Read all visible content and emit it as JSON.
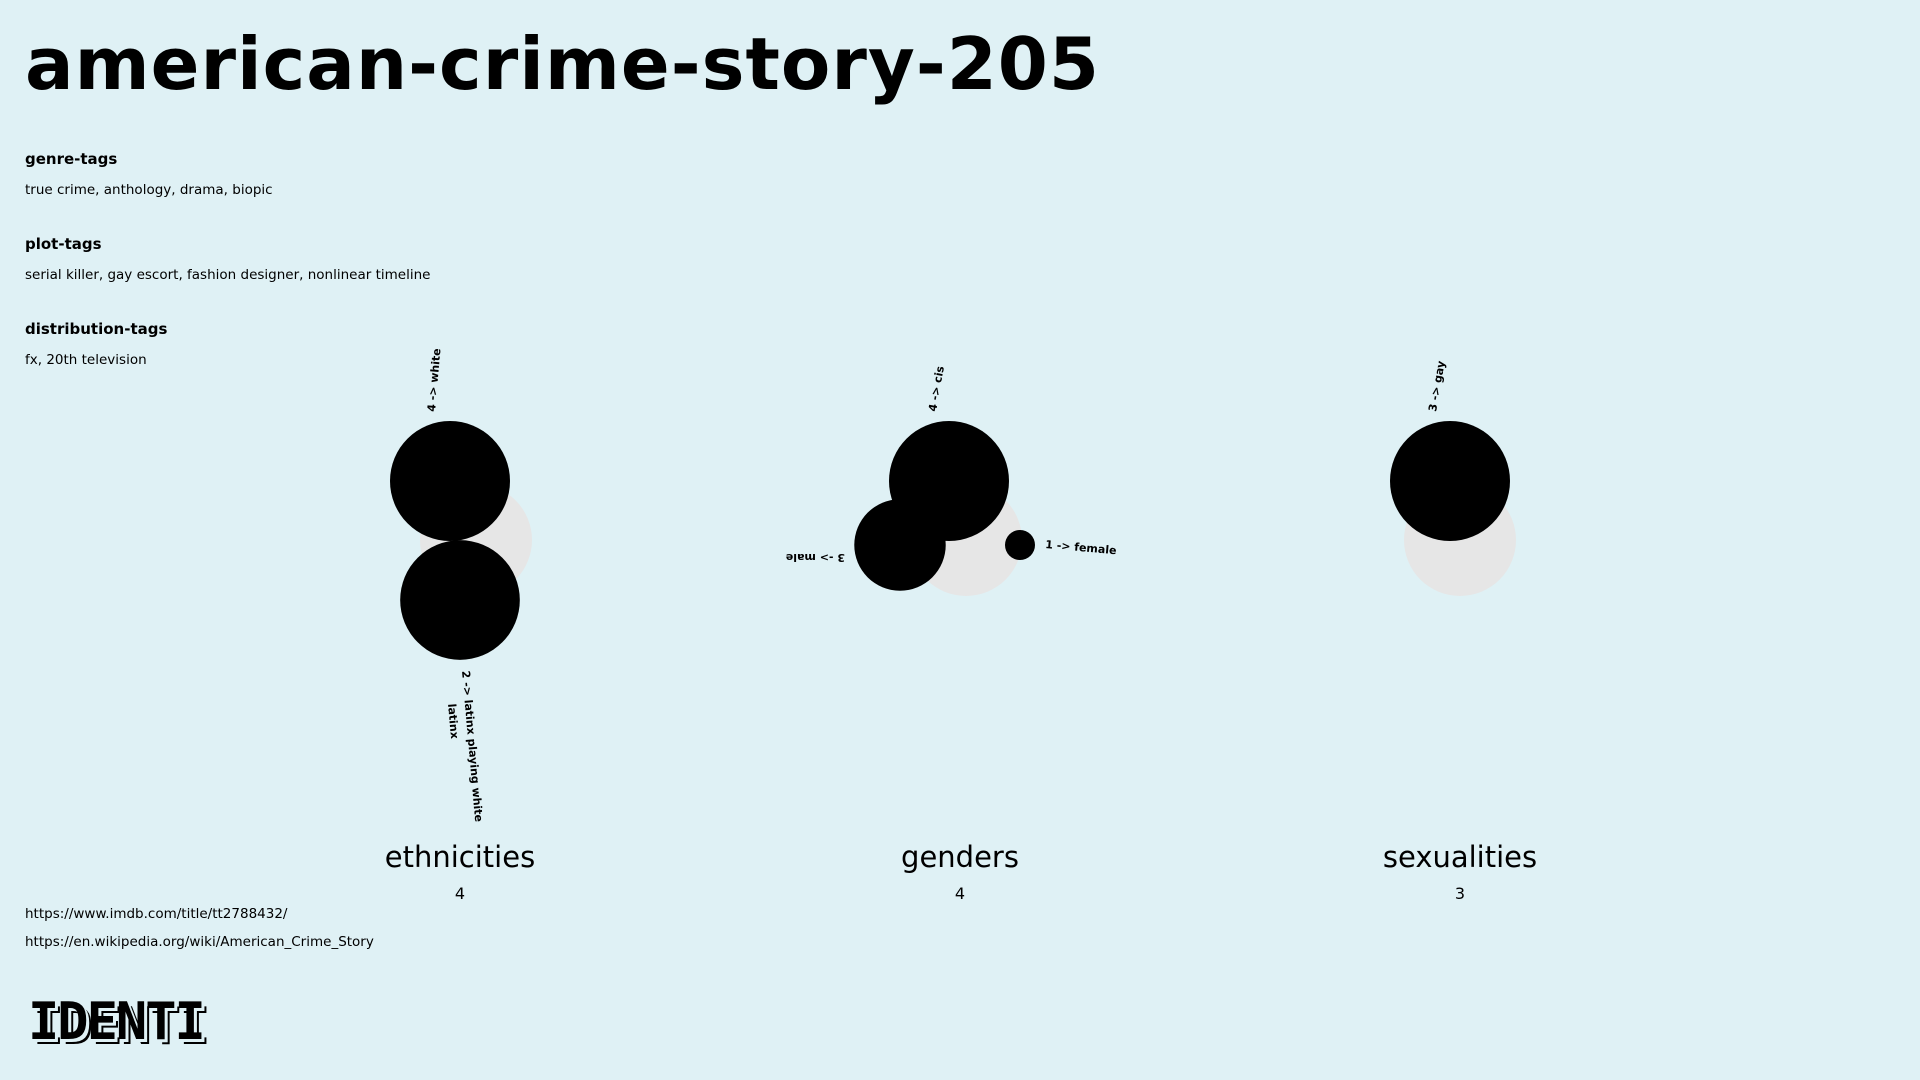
{
  "page": {
    "title": "american-crime-story-205",
    "background": "#dff1f5"
  },
  "tags": [
    {
      "heading": "genre-tags",
      "value": "true crime, anthology, drama, biopic"
    },
    {
      "heading": "plot-tags",
      "value": "serial killer, gay escort, fashion designer, nonlinear timeline"
    },
    {
      "heading": "distribution-tags",
      "value": "fx, 20th television"
    }
  ],
  "links": [
    "https://www.imdb.com/title/tt2788432/",
    "https://en.wikipedia.org/wiki/American_Crime_Story"
  ],
  "logo_text": "IDENTI",
  "chart_data": [
    {
      "type": "bubble",
      "title": "ethnicities",
      "total": 4,
      "series": [
        {
          "label": "4 -> white",
          "count": 4
        },
        {
          "label": "2 -> latinx playing white",
          "count": 2
        },
        {
          "label": "latinx",
          "count": 2
        }
      ]
    },
    {
      "type": "bubble",
      "title": "genders",
      "total": 4,
      "series": [
        {
          "label": "4 -> cis",
          "count": 4
        },
        {
          "label": "3 -> male",
          "count": 3
        },
        {
          "label": "1 -> female",
          "count": 1
        }
      ]
    },
    {
      "type": "bubble",
      "title": "sexualities",
      "total": 3,
      "series": [
        {
          "label": "3 -> gay",
          "count": 3
        }
      ]
    }
  ]
}
